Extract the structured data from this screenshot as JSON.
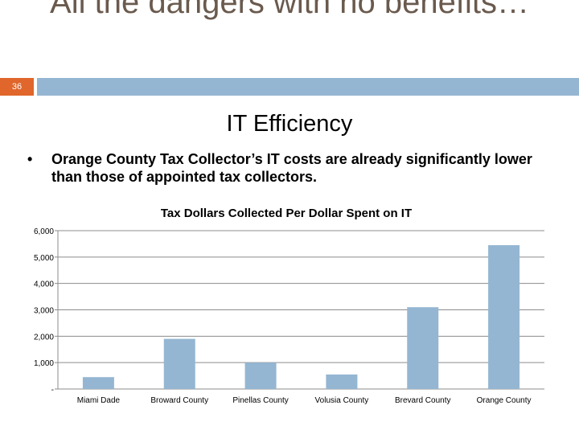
{
  "slide": {
    "title": "All the dangers with no benefits…",
    "number": "36",
    "heading": "IT Efficiency",
    "bullet": "Orange County Tax Collector’s IT costs are already significantly lower than those of appointed tax collectors.",
    "bullet_marker": "•"
  },
  "colors": {
    "accent_orange": "#e0662b",
    "title_bar_blue": "#94b6d2",
    "bar_blue": "#94b6d2",
    "title_text": "#6a5a4e"
  },
  "chart_data": {
    "type": "bar",
    "title": "Tax Dollars Collected Per Dollar Spent on IT",
    "xlabel": "",
    "ylabel": "",
    "categories": [
      "Miami Dade",
      "Broward County",
      "Pinellas County",
      "Volusia County",
      "Brevard County",
      "Orange County"
    ],
    "values": [
      450,
      1900,
      1000,
      550,
      3100,
      5450
    ],
    "ylim": [
      0,
      6000
    ],
    "yticks": [
      0,
      1000,
      2000,
      3000,
      4000,
      5000,
      6000
    ],
    "ytick_labels": [
      "-",
      "1,000",
      "2,000",
      "3,000",
      "4,000",
      "5,000",
      "6,000"
    ],
    "grid": true,
    "legend": "none"
  }
}
